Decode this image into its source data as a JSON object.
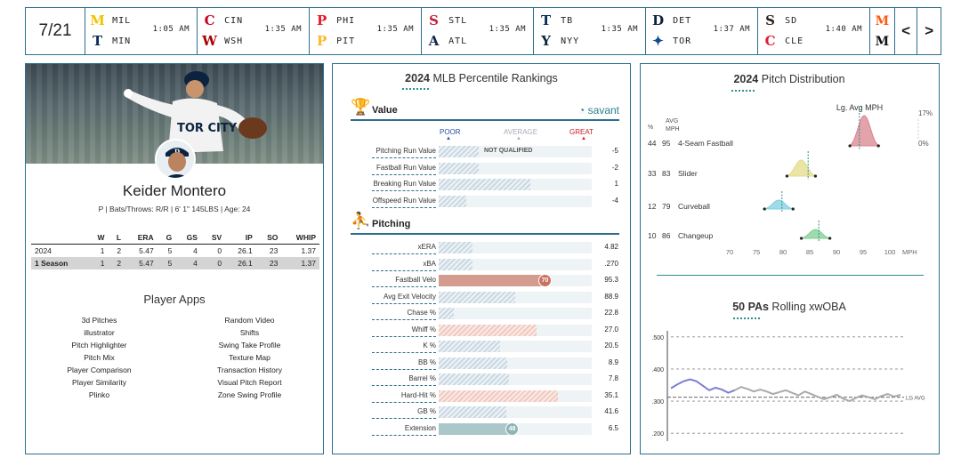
{
  "scoreboard": {
    "date": "7/21",
    "games": [
      {
        "away": "MIL",
        "home": "MIN",
        "time": "1:05 AM",
        "away_color": "#f2c200",
        "home_color": "#0c2a55",
        "away_glyph": "M",
        "home_glyph": "T"
      },
      {
        "away": "CIN",
        "home": "WSH",
        "time": "1:35 AM",
        "away_color": "#c6011f",
        "home_color": "#ab0003",
        "away_glyph": "C",
        "home_glyph": "W"
      },
      {
        "away": "PHI",
        "home": "PIT",
        "time": "1:35 AM",
        "away_color": "#e81828",
        "home_color": "#fdb827",
        "away_glyph": "P",
        "home_glyph": "P"
      },
      {
        "away": "STL",
        "home": "ATL",
        "time": "1:35 AM",
        "away_color": "#c41e3a",
        "home_color": "#13274f",
        "away_glyph": "S",
        "home_glyph": "A"
      },
      {
        "away": "TB",
        "home": "NYY",
        "time": "1:35 AM",
        "away_color": "#092c5c",
        "home_color": "#0c2340",
        "away_glyph": "T",
        "home_glyph": "Y"
      },
      {
        "away": "DET",
        "home": "TOR",
        "time": "1:37 AM",
        "away_color": "#0c2340",
        "home_color": "#134a8e",
        "away_glyph": "D",
        "home_glyph": "✦"
      },
      {
        "away": "SD",
        "home": "CLE",
        "time": "1:40 AM",
        "away_color": "#2f241d",
        "home_color": "#e31937",
        "away_glyph": "S",
        "home_glyph": "C"
      }
    ],
    "extra_logos": [
      {
        "glyph": "M",
        "color": "#ff5910"
      },
      {
        "glyph": "M",
        "color": "#111111"
      }
    ],
    "prev_label": "<",
    "next_label": ">"
  },
  "player": {
    "name": "Keider Montero",
    "info": "P | Bats/Throws: R/R | 6' 1\" 145LBS | Age: 24",
    "stats_headers": [
      "",
      "W",
      "L",
      "ERA",
      "G",
      "GS",
      "SV",
      "IP",
      "SO",
      "WHIP"
    ],
    "stats_rows": [
      [
        "2024",
        "1",
        "2",
        "5.47",
        "5",
        "4",
        "0",
        "26.1",
        "23",
        "1.37"
      ],
      [
        "1 Season",
        "1",
        "2",
        "5.47",
        "5",
        "4",
        "0",
        "26.1",
        "23",
        "1.37"
      ]
    ],
    "apps_title": "Player Apps",
    "apps_left": [
      "3d Pitches",
      "illustrator",
      "Pitch Highlighter",
      "Pitch Mix",
      "Player Comparison",
      "Player Similarity",
      "Plinko"
    ],
    "apps_right": [
      "Random Video",
      "Shifts",
      "Swing Take Profile",
      "Texture Map",
      "Transaction History",
      "Visual Pitch Report",
      "Zone Swing Profile"
    ]
  },
  "percentile": {
    "title_bold": "2024",
    "title_rest": " MLB Percentile Rankings",
    "value_label": "Value",
    "pitching_label": "Pitching",
    "savant_label": "savant",
    "legend": {
      "poor": "POOR",
      "average": "AVERAGE",
      "great": "GREAT"
    },
    "not_qualified": "NOT QUALIFIED",
    "colors": {
      "poor": "#1f4fa0",
      "average": "#9fb4bf",
      "great": "#d01b22"
    },
    "value_rows": [
      {
        "label": "Pitching Run Value",
        "value": "-5",
        "pct": 0.26,
        "style": "stripe"
      },
      {
        "label": "Fastball Run Value",
        "value": "-2",
        "pct": 0.26,
        "style": "stripe"
      },
      {
        "label": "Breaking Run Value",
        "value": "1",
        "pct": 0.6,
        "style": "stripe"
      },
      {
        "label": "Offspeed Run Value",
        "value": "-4",
        "pct": 0.18,
        "style": "stripe"
      }
    ],
    "pitching_rows": [
      {
        "label": "xERA",
        "value": "4.82",
        "pct": 0.22,
        "style": "stripe"
      },
      {
        "label": "xBA",
        "value": ".270",
        "pct": 0.22,
        "style": "stripe"
      },
      {
        "label": "Fastball Velo",
        "value": "95.3",
        "pct": 0.7,
        "style": "warm",
        "rank": "70",
        "dot_color": "#c9735f"
      },
      {
        "label": "Avg Exit Velocity",
        "value": "88.9",
        "pct": 0.5,
        "style": "stripe"
      },
      {
        "label": "Chase %",
        "value": "22.8",
        "pct": 0.1,
        "style": "stripe"
      },
      {
        "label": "Whiff %",
        "value": "27.0",
        "pct": 0.64,
        "style": "hot-stripe"
      },
      {
        "label": "K %",
        "value": "20.5",
        "pct": 0.4,
        "style": "stripe"
      },
      {
        "label": "BB %",
        "value": "8.9",
        "pct": 0.45,
        "style": "stripe"
      },
      {
        "label": "Barrel %",
        "value": "7.8",
        "pct": 0.46,
        "style": "stripe"
      },
      {
        "label": "Hard-Hit %",
        "value": "35.1",
        "pct": 0.78,
        "style": "hot-stripe"
      },
      {
        "label": "GB %",
        "value": "41.6",
        "pct": 0.44,
        "style": "stripe"
      },
      {
        "label": "Extension",
        "value": "6.5",
        "pct": 0.48,
        "style": "teal",
        "rank": "48",
        "dot_color": "#8fb4b6"
      }
    ]
  },
  "pitch_distribution": {
    "title_bold": "2024",
    "title_rest": " Pitch Distribution",
    "lg_avg_label": "Lg. Avg MPH",
    "col_pct": "%",
    "col_avg": "AVG",
    "col_mph": "MPH",
    "scale_max": "17%",
    "scale_min": "0%",
    "x_axis_label": "MPH",
    "x_ticks": [
      "70",
      "75",
      "80",
      "85",
      "90",
      "95",
      "100"
    ],
    "pitches": [
      {
        "pct": "44",
        "mph": "95",
        "name": "4-Seam Fastball",
        "color": "#d9848e",
        "avg": 95.2,
        "lg_avg": 94.3
      },
      {
        "pct": "33",
        "mph": "83",
        "name": "Slider",
        "color": "#e3dc8a",
        "avg": 83.4,
        "lg_avg": 84.7
      },
      {
        "pct": "12",
        "mph": "79",
        "name": "Curveball",
        "color": "#7fd0e0",
        "avg": 79.2,
        "lg_avg": 79.8
      },
      {
        "pct": "10",
        "mph": "86",
        "name": "Changeup",
        "color": "#7fcf92",
        "avg": 86.1,
        "lg_avg": 86.7
      }
    ]
  },
  "xwoba": {
    "title_bold": "50 PAs",
    "title_rest": " Rolling xwOBA",
    "y_ticks": [
      ".500",
      ".400",
      ".300",
      ".200"
    ],
    "lg_avg_label": "LG AVG",
    "lg_avg": 0.312,
    "ylim": [
      0.17,
      0.53
    ],
    "line_color": "#7b7fd4",
    "line_color_late": "#aaaaaa",
    "values": [
      0.34,
      0.352,
      0.362,
      0.368,
      0.362,
      0.348,
      0.334,
      0.342,
      0.336,
      0.326,
      0.334,
      0.344,
      0.338,
      0.33,
      0.336,
      0.33,
      0.322,
      0.328,
      0.334,
      0.326,
      0.318,
      0.33,
      0.322,
      0.314,
      0.306,
      0.312,
      0.32,
      0.308,
      0.3,
      0.31,
      0.318,
      0.312,
      0.306,
      0.316,
      0.322,
      0.314,
      0.32
    ]
  }
}
